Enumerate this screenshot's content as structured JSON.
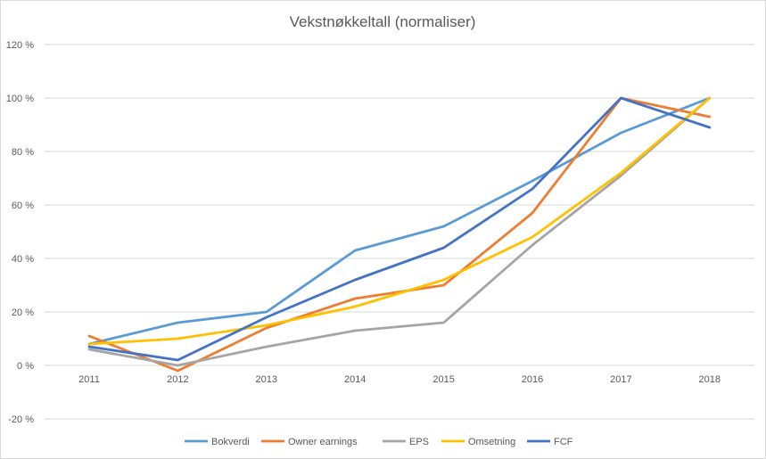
{
  "chart_data": {
    "type": "line",
    "title": "Vekstnøkkeltall (normaliser)",
    "xlabel": "",
    "ylabel": "",
    "categories": [
      "2011",
      "2012",
      "2013",
      "2014",
      "2015",
      "2016",
      "2017",
      "2018"
    ],
    "y_ticks": [
      -20,
      0,
      20,
      40,
      60,
      80,
      100,
      120
    ],
    "y_tick_labels": [
      "-20 %",
      "0 %",
      "20 %",
      "40 %",
      "60 %",
      "80 %",
      "100 %",
      "120 %"
    ],
    "ylim": [
      -20,
      120
    ],
    "grid": true,
    "legend_position": "bottom",
    "series": [
      {
        "name": "Bokverdi",
        "color": "#5b9bd5",
        "values": [
          8,
          16,
          20,
          43,
          52,
          69,
          87,
          100
        ]
      },
      {
        "name": "Owner earnings",
        "color": "#ed7d31",
        "values": [
          11,
          -2,
          14,
          25,
          30,
          57,
          100,
          93
        ]
      },
      {
        "name": "EPS",
        "color": "#a5a5a5",
        "values": [
          6,
          0,
          7,
          13,
          16,
          45,
          71,
          100
        ]
      },
      {
        "name": "Omsetning",
        "color": "#ffc000",
        "values": [
          8,
          10,
          15,
          22,
          32,
          48,
          72,
          100
        ]
      },
      {
        "name": "FCF",
        "color": "#4472c4",
        "values": [
          7,
          2,
          18,
          32,
          44,
          66,
          100,
          89
        ]
      }
    ]
  }
}
